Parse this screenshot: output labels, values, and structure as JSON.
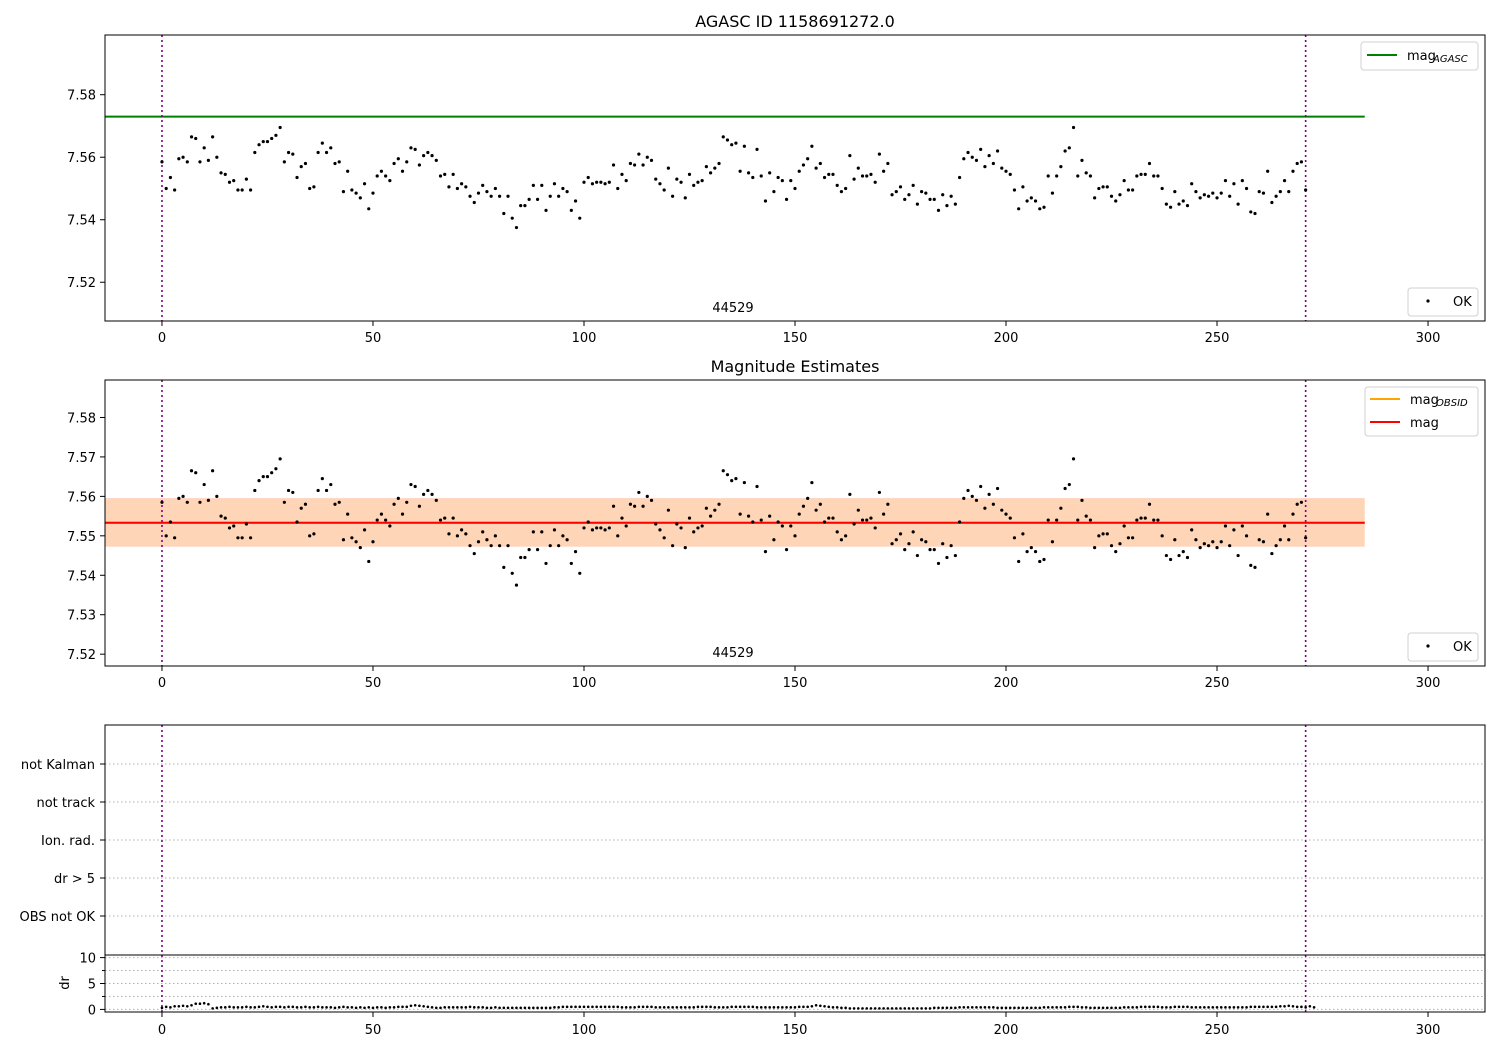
{
  "chart_data": [
    {
      "type": "scatter",
      "title": "AGASC ID 1158691272.0",
      "xlim": [
        -13.5,
        313.5
      ],
      "ylim": [
        7.5076,
        7.5991
      ],
      "xticks": [
        0,
        50,
        100,
        150,
        200,
        250,
        300
      ],
      "yticks": [
        7.52,
        7.54,
        7.56,
        7.58
      ],
      "grid": false,
      "obsid_label": "44529",
      "vlines": [
        0,
        271
      ],
      "hline": {
        "name": "mag_AGASC",
        "label_main": "mag",
        "label_sub": "AGASC",
        "y": 7.573,
        "x_range": [
          -13.5,
          285
        ],
        "color": "#008000"
      },
      "legend_lines": {
        "position": "top-right"
      },
      "legend_points": {
        "position": "bottom-right",
        "label": "OK"
      },
      "points": [
        7.5585,
        7.55,
        7.5535,
        7.5495,
        7.5595,
        7.56,
        7.5585,
        7.5665,
        7.566,
        7.5585,
        7.563,
        7.559,
        7.5665,
        7.56,
        7.555,
        7.5545,
        7.552,
        7.5525,
        7.5495,
        7.5495,
        7.553,
        7.5495,
        7.5615,
        7.564,
        7.565,
        7.565,
        7.566,
        7.567,
        7.5695,
        7.5585,
        7.5615,
        7.561,
        7.5535,
        7.557,
        7.558,
        7.55,
        7.5505,
        7.5615,
        7.5645,
        7.5615,
        7.563,
        7.558,
        7.5585,
        7.549,
        7.5555,
        7.5495,
        7.5485,
        7.547,
        7.5515,
        7.5435,
        7.5485,
        7.554,
        7.5555,
        7.554,
        7.5525,
        7.558,
        7.5595,
        7.5555,
        7.5585,
        7.563,
        7.5625,
        7.5575,
        7.5605,
        7.5615,
        7.5605,
        7.559,
        7.554,
        7.5545,
        7.5505,
        7.5545,
        7.55,
        7.5515,
        7.5505,
        7.5475,
        7.5455,
        7.5485,
        7.551,
        7.549,
        7.5475,
        7.55,
        7.5475,
        7.542,
        7.5475,
        7.5405,
        7.5375,
        7.5445,
        7.5445,
        7.5465,
        7.551,
        7.5465,
        7.551,
        7.543,
        7.5475,
        7.5515,
        7.5475,
        7.55,
        7.549,
        7.543,
        7.546,
        7.5405,
        7.552,
        7.5535,
        7.5515,
        7.552,
        7.552,
        7.5515,
        7.552,
        7.5575,
        7.55,
        7.5545,
        7.5525,
        7.558,
        7.5575,
        7.561,
        7.5575,
        7.56,
        7.559,
        7.553,
        7.5515,
        7.5495,
        7.5565,
        7.5475,
        7.553,
        7.552,
        7.547,
        7.5545,
        7.551,
        7.552,
        7.5525,
        7.557,
        7.555,
        7.5565,
        7.558,
        7.5665,
        7.5655,
        7.564,
        7.5645,
        7.5555,
        7.5635,
        7.555,
        7.5535,
        7.5625,
        7.554,
        7.546,
        7.555,
        7.549,
        7.5535,
        7.5525,
        7.5465,
        7.5525,
        7.55,
        7.5555,
        7.5575,
        7.5595,
        7.5635,
        7.5565,
        7.558,
        7.5535,
        7.5545,
        7.5545,
        7.551,
        7.549,
        7.55,
        7.5605,
        7.553,
        7.5565,
        7.554,
        7.554,
        7.5545,
        7.552,
        7.561,
        7.5555,
        7.558,
        7.548,
        7.549,
        7.5505,
        7.5465,
        7.548,
        7.551,
        7.545,
        7.549,
        7.5485,
        7.5465,
        7.5465,
        7.543,
        7.548,
        7.5445,
        7.5475,
        7.545,
        7.5535,
        7.5595,
        7.5615,
        7.56,
        7.559,
        7.5625,
        7.557,
        7.5605,
        7.558,
        7.562,
        7.5565,
        7.5555,
        7.5545,
        7.5495,
        7.5435,
        7.5505,
        7.546,
        7.547,
        7.546,
        7.5435,
        7.544,
        7.554,
        7.5485,
        7.554,
        7.557,
        7.562,
        7.563,
        7.5695,
        7.554,
        7.559,
        7.555,
        7.554,
        7.547,
        7.55,
        7.5505,
        7.5505,
        7.5475,
        7.546,
        7.548,
        7.5525,
        7.5495,
        7.5495,
        7.554,
        7.5545,
        7.5545,
        7.558,
        7.554,
        7.554,
        7.55,
        7.545,
        7.544,
        7.549,
        7.545,
        7.546,
        7.5445,
        7.5515,
        7.549,
        7.547,
        7.548,
        7.5475,
        7.5485,
        7.547,
        7.5485,
        7.5525,
        7.5475,
        7.5515,
        7.545,
        7.5525,
        7.55,
        7.5425,
        7.542,
        7.549,
        7.5485,
        7.5555,
        7.5455,
        7.5475,
        7.549,
        7.5525,
        7.549,
        7.5555,
        7.558,
        7.5585,
        7.5495
      ]
    },
    {
      "type": "scatter",
      "title": "Magnitude Estimates",
      "xlim": [
        -13.5,
        313.5
      ],
      "ylim": [
        7.517,
        7.5895
      ],
      "xticks": [
        0,
        50,
        100,
        150,
        200,
        250,
        300
      ],
      "yticks": [
        7.52,
        7.53,
        7.54,
        7.55,
        7.56,
        7.57,
        7.58
      ],
      "grid": false,
      "obsid_label": "44529",
      "vlines": [
        0,
        271
      ],
      "series": [
        {
          "name": "mag_OBSID",
          "label_main": "mag",
          "label_sub": "OBSID",
          "y": 7.5533,
          "band": [
            7.5473,
            7.5595
          ],
          "x_range": [
            -13.5,
            285
          ],
          "color": "#ffa500"
        },
        {
          "name": "mag",
          "label_main": "mag",
          "y": 7.5533,
          "band": [
            7.5472,
            7.5596
          ],
          "x_range": [
            -13.5,
            285
          ],
          "color": "#ff0000"
        }
      ],
      "legend_lines": {
        "position": "top-right"
      },
      "legend_points": {
        "position": "bottom-right",
        "label": "OK"
      }
    },
    {
      "type": "scatter",
      "categories": [
        "OBS not OK",
        "dr > 5",
        "Ion. rad.",
        "not track",
        "not Kalman"
      ],
      "xlim": [
        -13.5,
        313.5
      ],
      "grid": true,
      "vlines": [
        0,
        271
      ],
      "flags": []
    },
    {
      "type": "scatter",
      "ylabel": "dr",
      "xlim": [
        -13.5,
        313.5
      ],
      "ylim": [
        -0.5,
        10.5
      ],
      "xticks": [
        0,
        50,
        100,
        150,
        200,
        250,
        300
      ],
      "yticks": [
        0,
        5,
        10
      ],
      "minor_yticks": [
        2.5,
        7.5
      ],
      "grid": true,
      "vlines": [
        0,
        271
      ],
      "dr": [
        0.3,
        0.5,
        0.4,
        0.6,
        0.6,
        0.7,
        0.6,
        0.8,
        1.1,
        1.1,
        1.2,
        1.0,
        0.2,
        0.3,
        0.4,
        0.4,
        0.5,
        0.4,
        0.4,
        0.4,
        0.5,
        0.4,
        0.4,
        0.5,
        0.6,
        0.5,
        0.4,
        0.5,
        0.5,
        0.4,
        0.5,
        0.5,
        0.4,
        0.4,
        0.5,
        0.4,
        0.4,
        0.5,
        0.4,
        0.4,
        0.4,
        0.3,
        0.4,
        0.5,
        0.4,
        0.4,
        0.3,
        0.4,
        0.3,
        0.4,
        0.3,
        0.4,
        0.4,
        0.3,
        0.4,
        0.4,
        0.5,
        0.5,
        0.5,
        0.7,
        0.8,
        0.7,
        0.6,
        0.5,
        0.4,
        0.3,
        0.3,
        0.4,
        0.4,
        0.4,
        0.4,
        0.4,
        0.4,
        0.5,
        0.4,
        0.4,
        0.4,
        0.3,
        0.3,
        0.4,
        0.3,
        0.3,
        0.3,
        0.3,
        0.3,
        0.3,
        0.3,
        0.3,
        0.3,
        0.3,
        0.3,
        0.3,
        0.3,
        0.4,
        0.4,
        0.5,
        0.5,
        0.5,
        0.5,
        0.5,
        0.5,
        0.5,
        0.5,
        0.5,
        0.5,
        0.5,
        0.5,
        0.5,
        0.5,
        0.4,
        0.4,
        0.4,
        0.4,
        0.5,
        0.5,
        0.5,
        0.5,
        0.4,
        0.4,
        0.4,
        0.4,
        0.4,
        0.4,
        0.4,
        0.4,
        0.4,
        0.4,
        0.5,
        0.5,
        0.5,
        0.5,
        0.4,
        0.4,
        0.4,
        0.4,
        0.5,
        0.5,
        0.5,
        0.5,
        0.5,
        0.5,
        0.4,
        0.4,
        0.4,
        0.4,
        0.4,
        0.4,
        0.4,
        0.4,
        0.4,
        0.4,
        0.5,
        0.5,
        0.5,
        0.6,
        0.8,
        0.7,
        0.6,
        0.5,
        0.4,
        0.4,
        0.3,
        0.3,
        0.2,
        0.2,
        0.2,
        0.2,
        0.2,
        0.2,
        0.2,
        0.2,
        0.2,
        0.2,
        0.2,
        0.2,
        0.2,
        0.2,
        0.2,
        0.2,
        0.2,
        0.2,
        0.2,
        0.2,
        0.3,
        0.3,
        0.3,
        0.3,
        0.3,
        0.3,
        0.4,
        0.4,
        0.4,
        0.4,
        0.4,
        0.4,
        0.4,
        0.4,
        0.4,
        0.3,
        0.3,
        0.3,
        0.3,
        0.3,
        0.3,
        0.3,
        0.3,
        0.3,
        0.3,
        0.3,
        0.4,
        0.4,
        0.4,
        0.4,
        0.4,
        0.4,
        0.5,
        0.5,
        0.5,
        0.4,
        0.4,
        0.3,
        0.3,
        0.3,
        0.3,
        0.3,
        0.3,
        0.3,
        0.3,
        0.4,
        0.4,
        0.4,
        0.4,
        0.5,
        0.5,
        0.5,
        0.5,
        0.5,
        0.4,
        0.4,
        0.4,
        0.5,
        0.5,
        0.5,
        0.5,
        0.4,
        0.4,
        0.4,
        0.4,
        0.4,
        0.4,
        0.4,
        0.4,
        0.4,
        0.4,
        0.4,
        0.4,
        0.4,
        0.4,
        0.5,
        0.5,
        0.5,
        0.5,
        0.5,
        0.5,
        0.5,
        0.6,
        0.6,
        0.7,
        0.6,
        0.5,
        0.5,
        0.4,
        0.6,
        0.4
      ]
    }
  ]
}
